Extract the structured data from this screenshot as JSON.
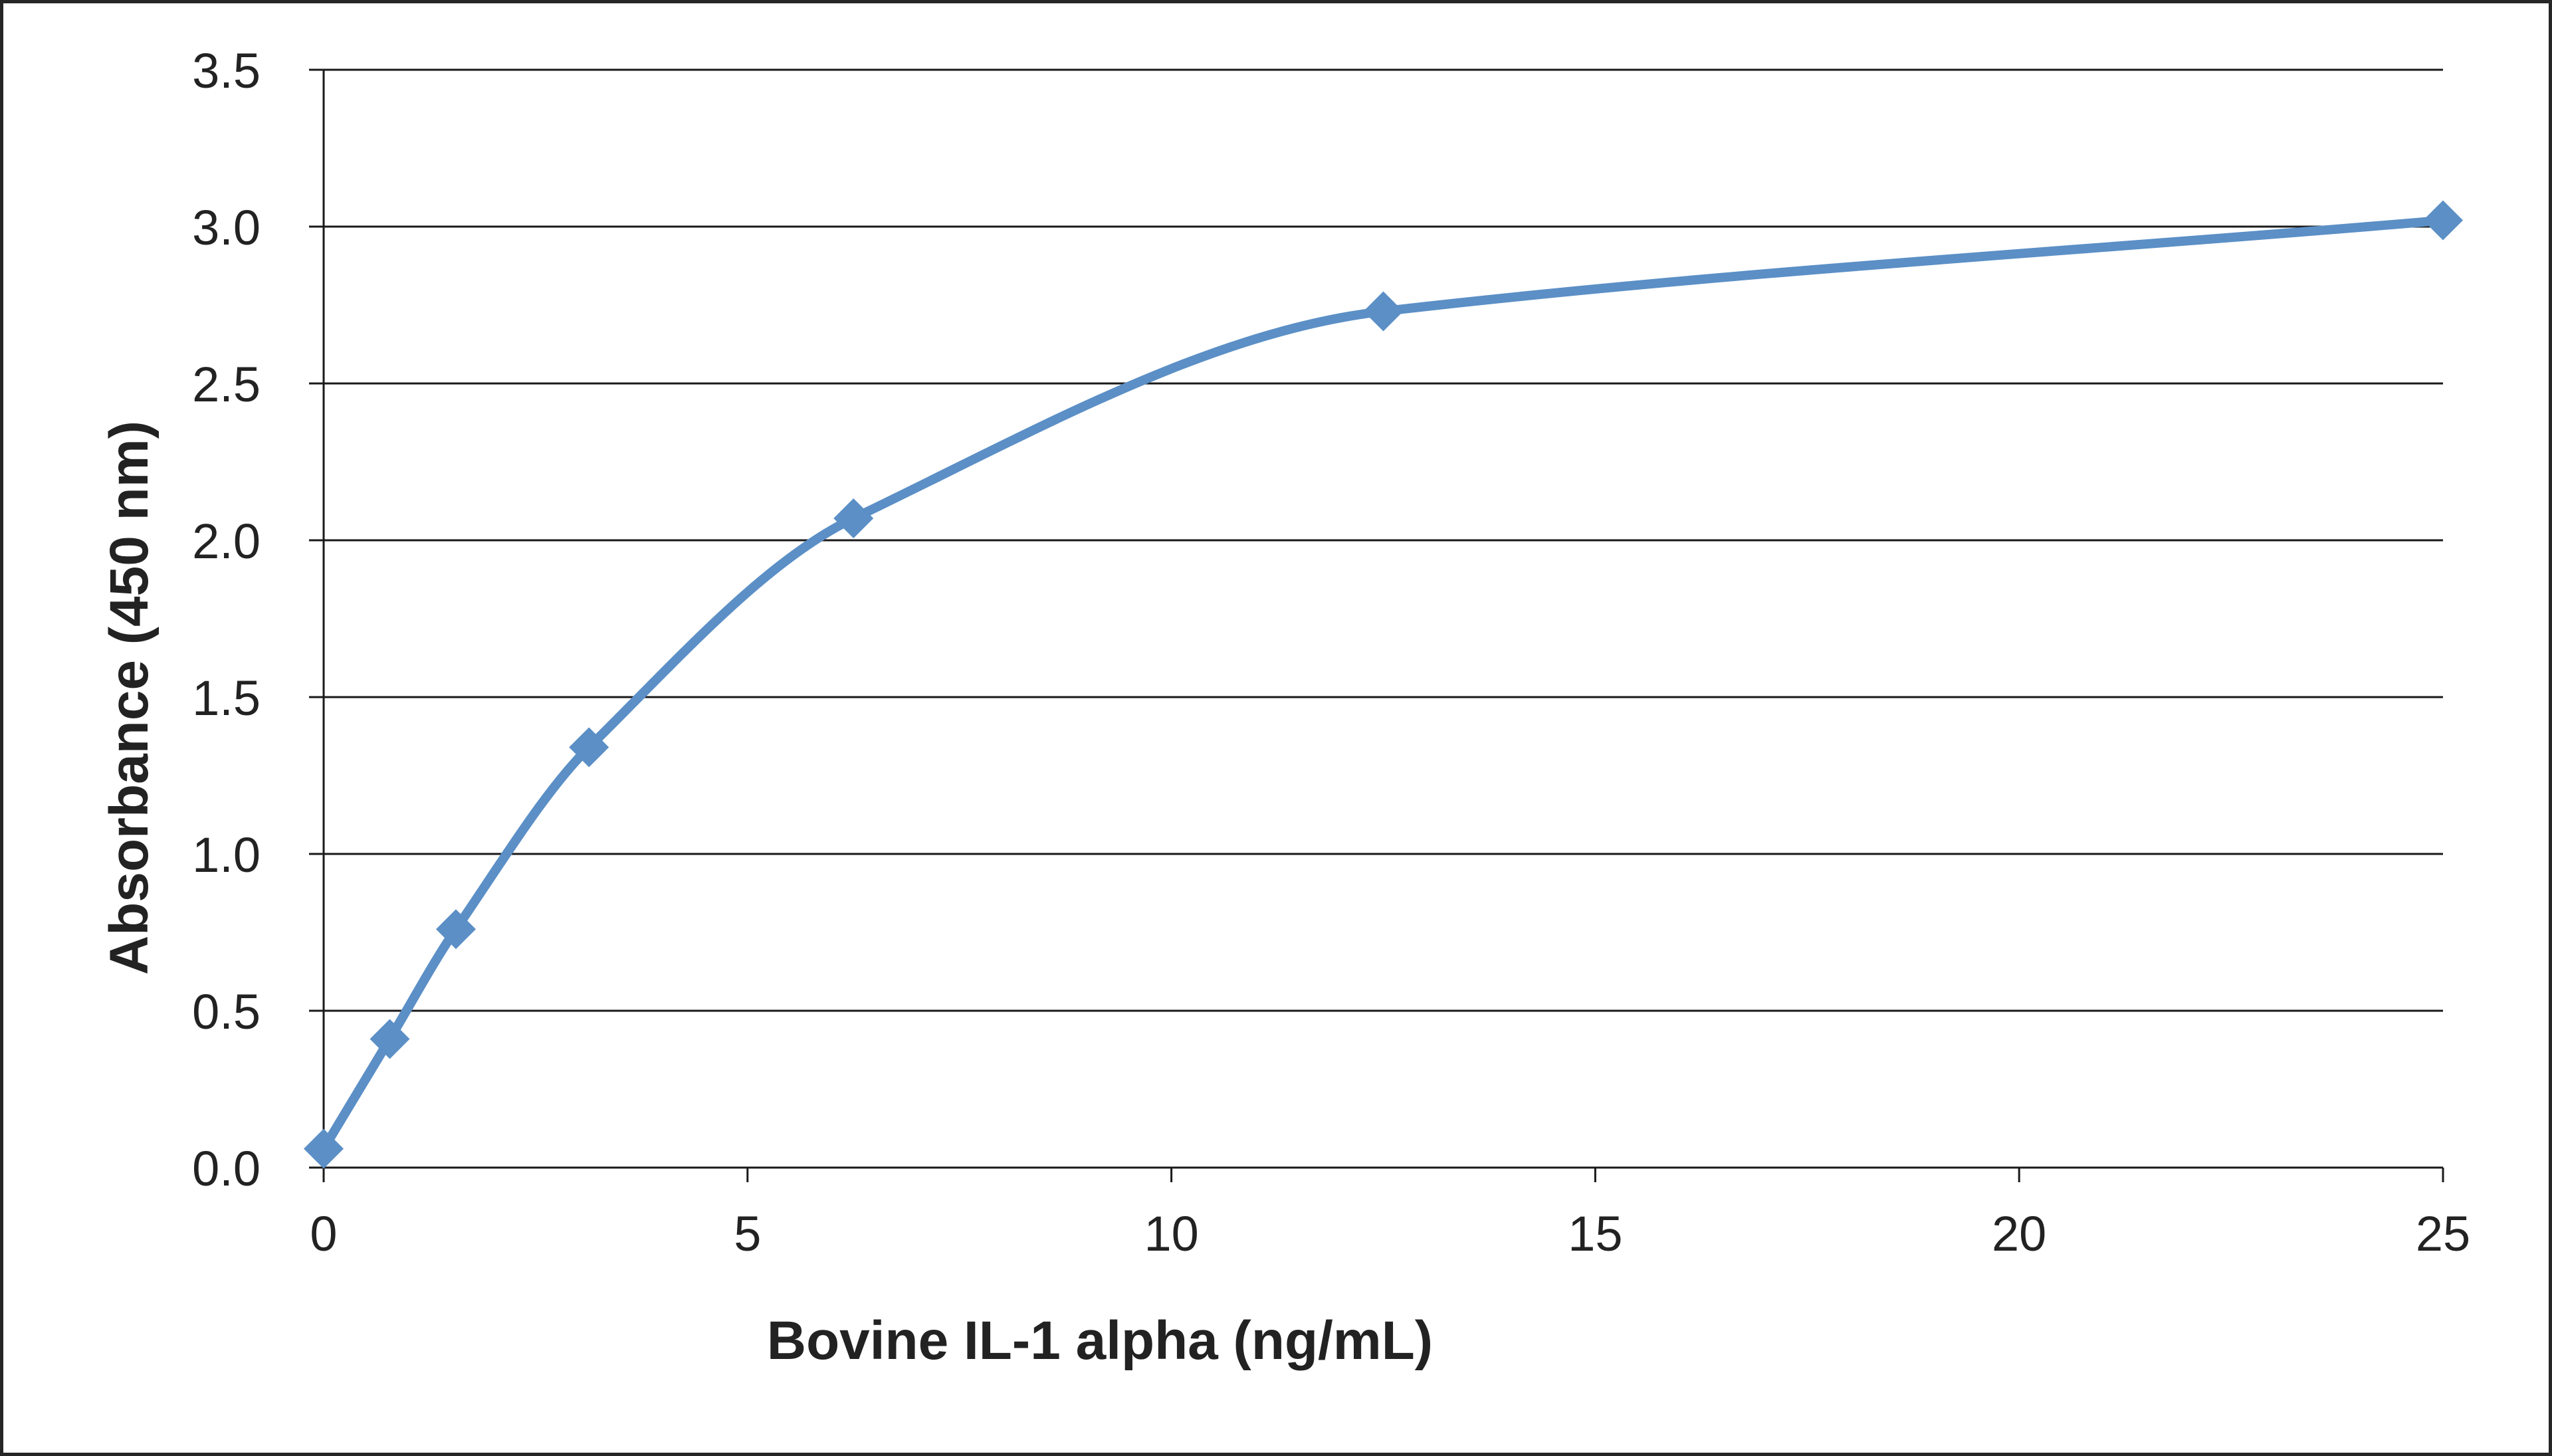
{
  "chart_data": {
    "type": "line",
    "title": "",
    "xlabel": "Bovine IL-1 alpha (ng/mL)",
    "ylabel": "Absorbance  (450 nm)",
    "xlim": [
      0,
      25
    ],
    "ylim": [
      0,
      3.5
    ],
    "x_ticks": [
      "0",
      "5",
      "10",
      "15",
      "20",
      "25"
    ],
    "y_ticks": [
      "0.0",
      "0.5",
      "1.0",
      "1.5",
      "2.0",
      "2.5",
      "3.0",
      "3.5"
    ],
    "grid": "horizontal",
    "legend": "none",
    "series": [
      {
        "x": [
          0,
          0.78,
          1.56,
          3.13,
          6.25,
          12.5,
          25
        ],
        "y": [
          0.06,
          0.41,
          0.76,
          1.34,
          2.07,
          2.73,
          3.02
        ],
        "color": "#5b8fc6",
        "marker": "diamond",
        "smooth": true
      }
    ]
  }
}
